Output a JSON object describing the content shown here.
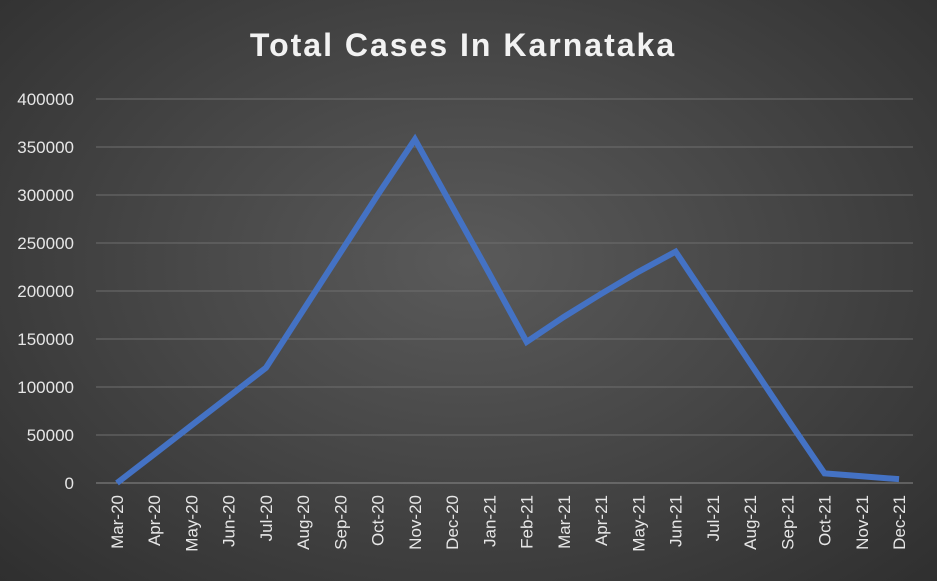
{
  "chart_data": {
    "type": "line",
    "title": "Total Cases In Karnataka",
    "xlabel": "",
    "ylabel": "",
    "categories": [
      "Mar-20",
      "Apr-20",
      "May-20",
      "Jun-20",
      "Jul-20",
      "Aug-20",
      "Sep-20",
      "Oct-20",
      "Nov-20",
      "Dec-20",
      "Jan-21",
      "Feb-21",
      "Mar-21",
      "Apr-21",
      "May-21",
      "Jun-21",
      "Jul-21",
      "Aug-21",
      "Sep-21",
      "Oct-21",
      "Nov-21",
      "Dec-21"
    ],
    "yticks": [
      "400000",
      "350000",
      "300000",
      "250000",
      "200000",
      "150000",
      "100000",
      "50000",
      "0"
    ],
    "ylim": [
      0,
      400000
    ],
    "grid": true,
    "legend": "none",
    "series": [
      {
        "color": "#4472c4",
        "values": [
          0,
          30000,
          60000,
          90000,
          120000,
          180000,
          240000,
          300000,
          358000,
          288000,
          218000,
          147000,
          173000,
          197000,
          220000,
          241000,
          183000,
          125000,
          67000,
          10000,
          7000,
          4000
        ]
      }
    ]
  }
}
